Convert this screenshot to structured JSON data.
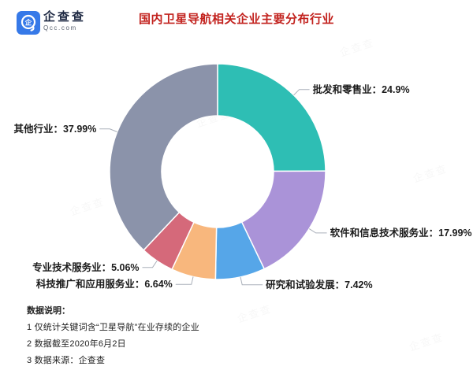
{
  "header": {
    "logo": {
      "brand": "企查查",
      "domain": "Qcc.com",
      "icon_char": "企",
      "brand_color": "#3679e8"
    },
    "title": "国内卫星导航相关企业主要分布行业",
    "title_color": "#c2221e"
  },
  "chart_data": {
    "type": "pie",
    "title": "国内卫星导航相关企业主要分布行业",
    "donut": true,
    "direction": "clockwise",
    "start_angle": "12-o-clock",
    "unit": "%",
    "label_format": "name：value%",
    "leader_line_color": "#aab0ba",
    "slices": [
      {
        "name": "批发和零售业",
        "value": 24.9,
        "color": "#2ebeb4"
      },
      {
        "name": "软件和信息技术服务业",
        "value": 17.99,
        "color": "#aa93d8"
      },
      {
        "name": "研究和试验发展",
        "value": 7.42,
        "color": "#56a6e8"
      },
      {
        "name": "科技推广和应用服务业",
        "value": 6.64,
        "color": "#f8b77d"
      },
      {
        "name": "专业技术服务业",
        "value": 5.06,
        "color": "#d5697a"
      },
      {
        "name": "其他行业",
        "value": 37.99,
        "color": "#8b93aa"
      }
    ]
  },
  "footer": {
    "heading": "数据说明：",
    "notes": [
      "1 仅统计关键词含“卫星导航”在业存续的企业",
      "2 数据截至2020年6月2日",
      "3 数据来源：企查查"
    ]
  },
  "watermark": "企查查"
}
